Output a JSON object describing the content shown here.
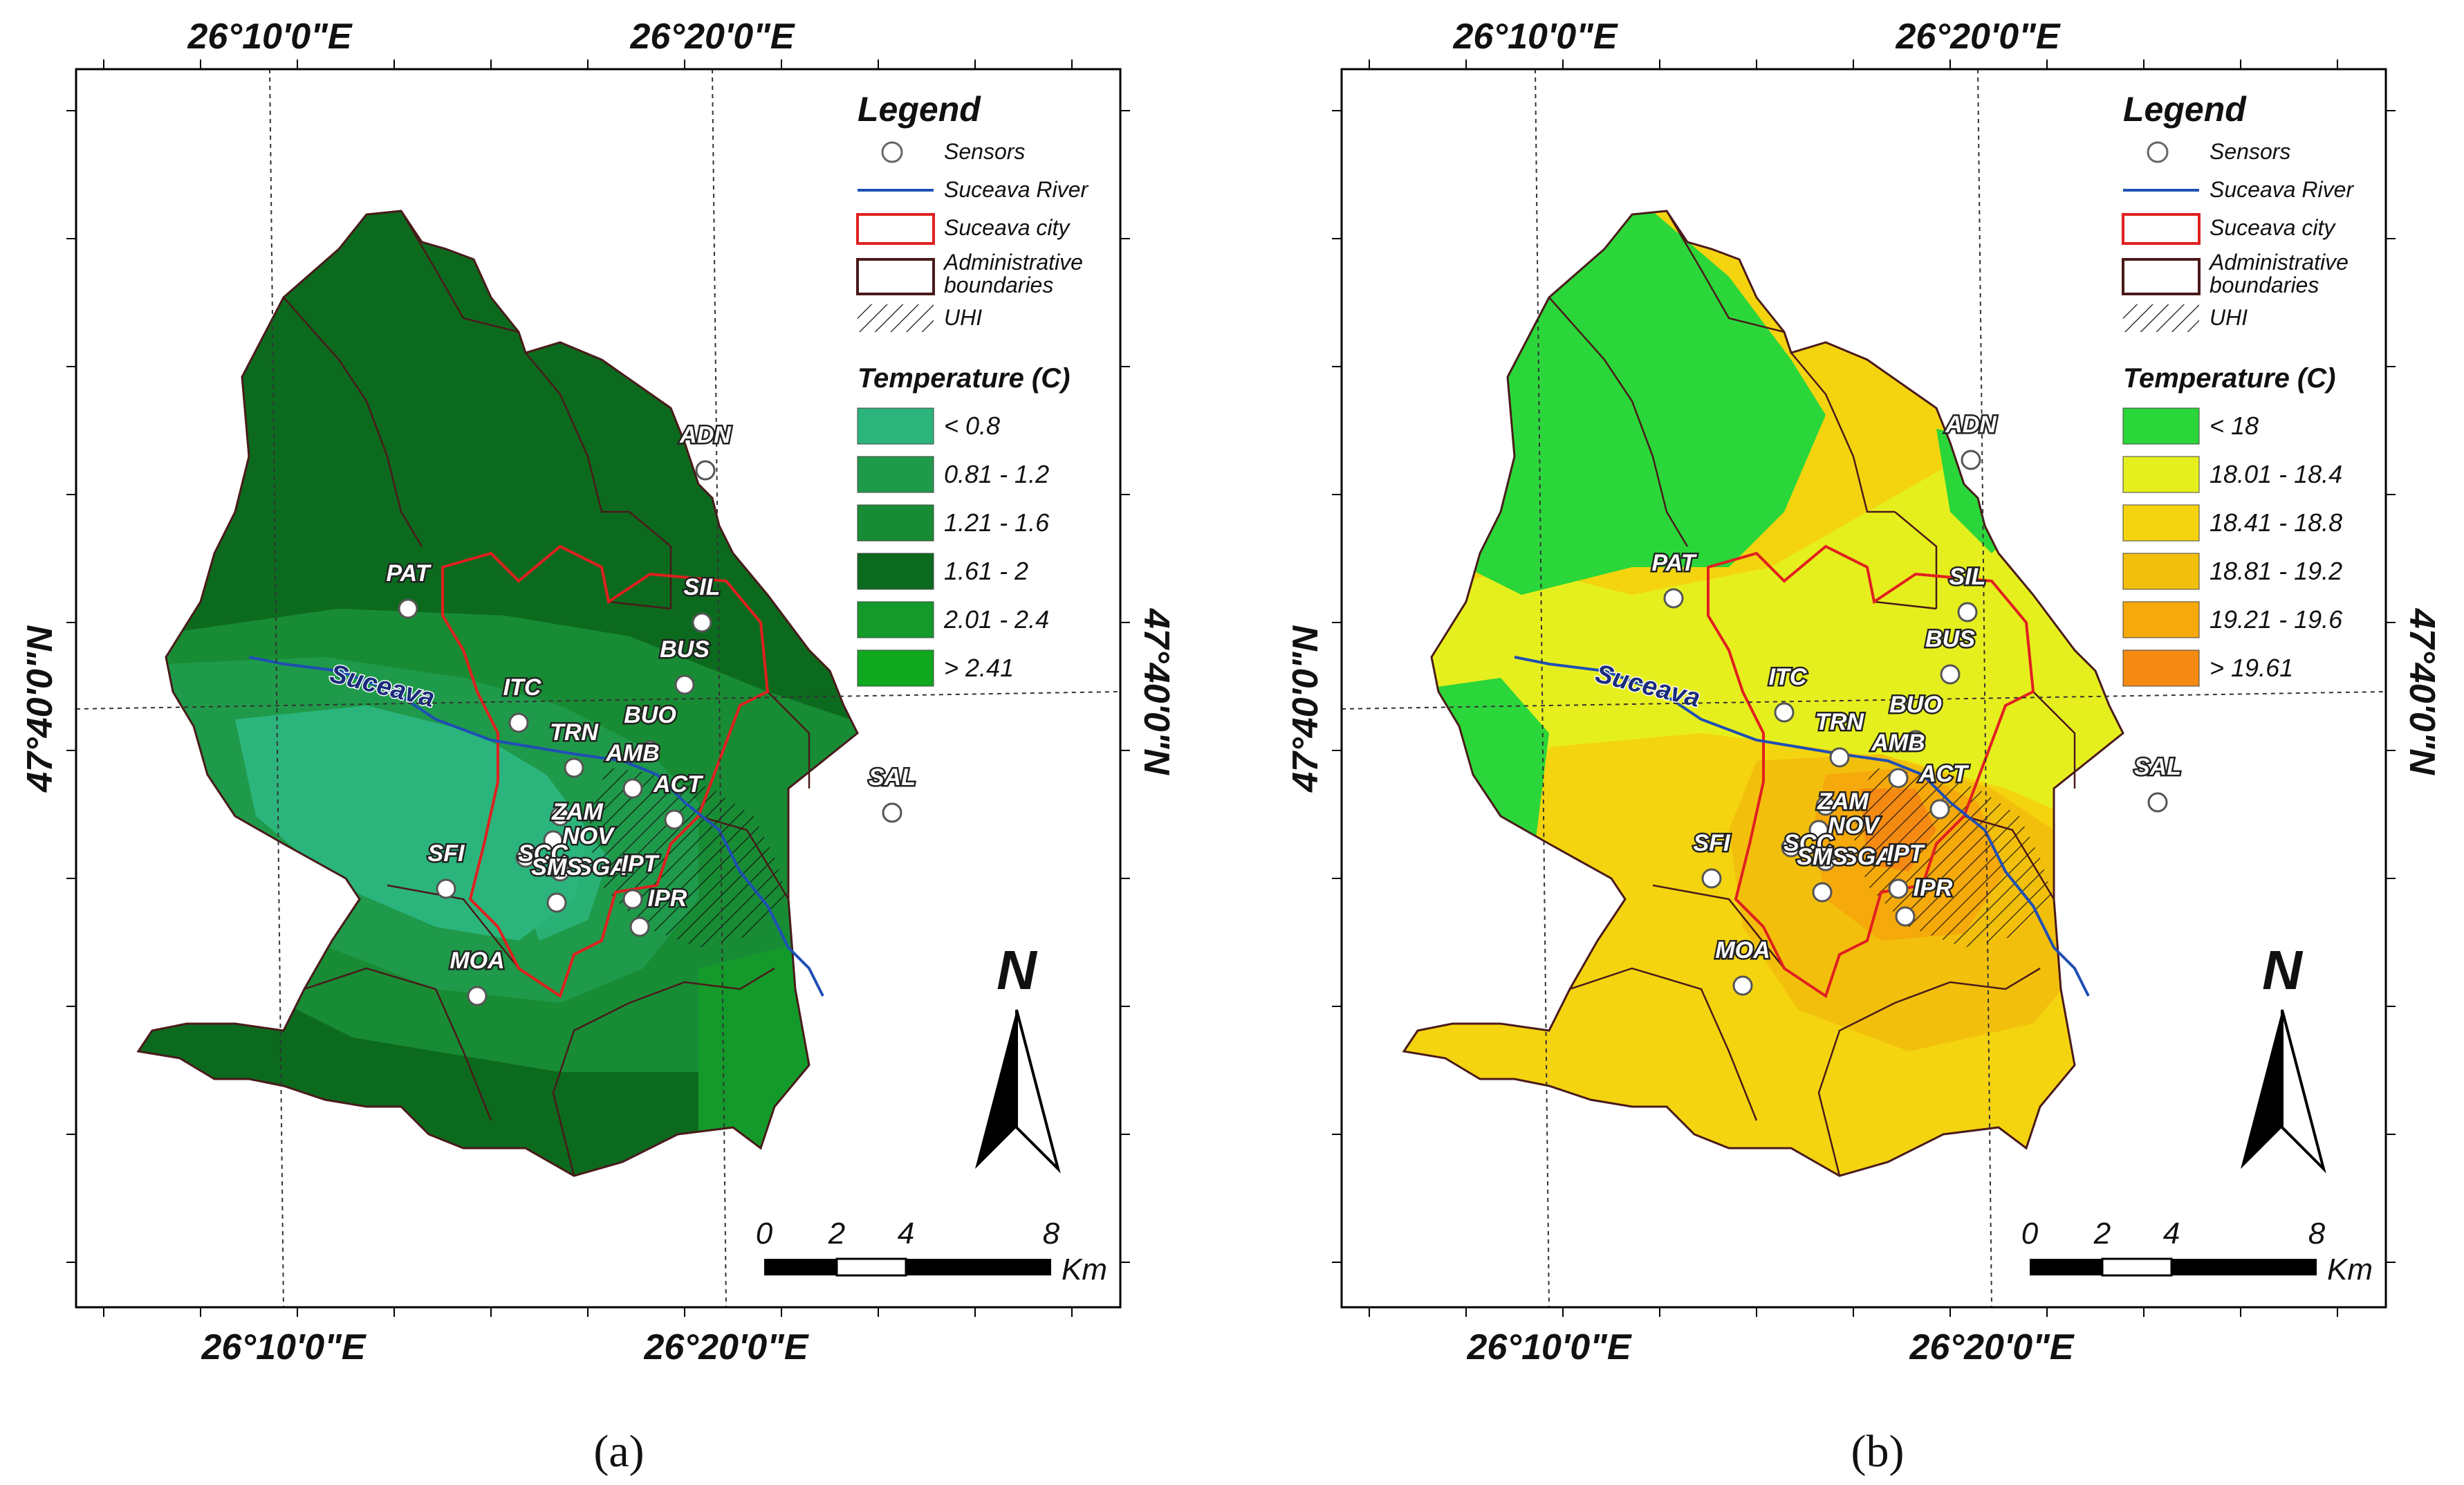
{
  "panels": [
    {
      "id": "a",
      "caption": "(a)",
      "top_labels": [
        "26°10'0\"E",
        "26°20'0\"E"
      ],
      "bottom_labels": [
        "26°10'0\"E",
        "26°20'0\"E"
      ],
      "left_label": "47°40'0\"N",
      "right_label": "47°40'0\"N",
      "legend_title": "Legend",
      "legend_items": [
        {
          "label": "Sensors",
          "symbol": "sensor"
        },
        {
          "label": "Suceava River",
          "symbol": "river"
        },
        {
          "label": "Suceava city",
          "symbol": "city"
        },
        {
          "label": "Administrative boundaries",
          "symbol": "admin"
        },
        {
          "label": "UHI",
          "symbol": "uhi"
        }
      ],
      "temperature_title": "Temperature (C)",
      "temperature_classes": [
        {
          "label": "< 0.8",
          "color": "#2bb57c"
        },
        {
          "label": "0.81 - 1.2",
          "color": "#1f9a4a"
        },
        {
          "label": "1.21 - 1.6",
          "color": "#188c34"
        },
        {
          "label": "1.61 - 2",
          "color": "#0c6a1e"
        },
        {
          "label": "2.01 - 2.4",
          "color": "#139a2a"
        },
        {
          "label": "> 2.41",
          "color": "#0fa81f"
        }
      ],
      "north_label": "N",
      "scale_ticks": [
        "0",
        "2",
        "4",
        "8"
      ],
      "scale_unit": "Km",
      "river_label": "Suceava"
    },
    {
      "id": "b",
      "caption": "(b)",
      "top_labels": [
        "26°10'0\"E",
        "26°20'0\"E"
      ],
      "bottom_labels": [
        "26°10'0\"E",
        "26°20'0\"E"
      ],
      "left_label": "47°40'0\"N",
      "right_label": "47°40'0\"N",
      "legend_title": "Legend",
      "legend_items": [
        {
          "label": "Sensors",
          "symbol": "sensor"
        },
        {
          "label": "Suceava River",
          "symbol": "river"
        },
        {
          "label": "Suceava city",
          "symbol": "city"
        },
        {
          "label": "Administrative boundaries",
          "symbol": "admin"
        },
        {
          "label": "UHI",
          "symbol": "uhi"
        }
      ],
      "temperature_title": "Temperature (C)",
      "temperature_classes": [
        {
          "label": "< 18",
          "color": "#2bd63a"
        },
        {
          "label": "18.01 - 18.4",
          "color": "#e6ef1e"
        },
        {
          "label": "18.41 - 18.8",
          "color": "#f4d40f"
        },
        {
          "label": "18.81 - 19.2",
          "color": "#f2c00c"
        },
        {
          "label": "19.21 - 19.6",
          "color": "#f5a90a"
        },
        {
          "label": "> 19.61",
          "color": "#f58a12"
        }
      ],
      "north_label": "N",
      "scale_ticks": [
        "0",
        "2",
        "4",
        "8"
      ],
      "scale_unit": "Km",
      "river_label": "Suceava"
    }
  ],
  "sensors": [
    {
      "code": "ADN"
    },
    {
      "code": "PAT"
    },
    {
      "code": "SIL"
    },
    {
      "code": "BUS"
    },
    {
      "code": "ITC"
    },
    {
      "code": "BUO"
    },
    {
      "code": "TRN"
    },
    {
      "code": "AMB"
    },
    {
      "code": "ZAM"
    },
    {
      "code": "ACT"
    },
    {
      "code": "SAL"
    },
    {
      "code": "NOV"
    },
    {
      "code": "SCC"
    },
    {
      "code": "SGA"
    },
    {
      "code": "SFI"
    },
    {
      "code": "SMS"
    },
    {
      "code": "IPT"
    },
    {
      "code": "IPR"
    },
    {
      "code": "MOA"
    }
  ],
  "colors": {
    "river": "#1f4fb5",
    "city_boundary": "#e02020",
    "admin_boundary": "#4a1a1a",
    "frame": "#000000"
  }
}
